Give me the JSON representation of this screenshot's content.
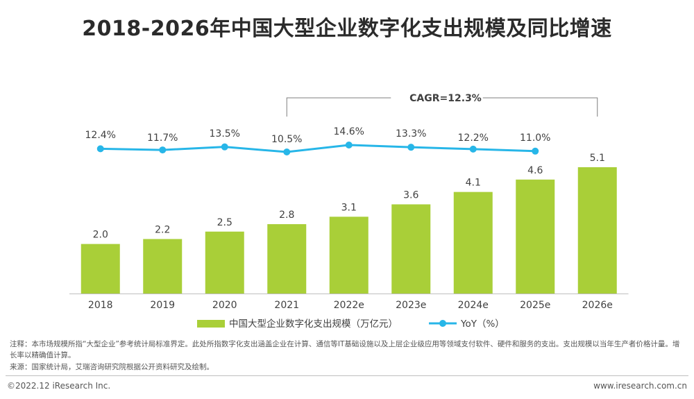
{
  "title": "2018-2026年中国大型企业数字化支出规模及同比增速",
  "chart_data": {
    "type": "bar",
    "categories": [
      "2018",
      "2019",
      "2020",
      "2021",
      "2022e",
      "2023e",
      "2024e",
      "2025e",
      "2026e"
    ],
    "series": [
      {
        "name": "中国大型企业数字化支出规模（万亿元）",
        "type": "bar",
        "color": "#a9cf38",
        "values": [
          2.0,
          2.2,
          2.5,
          2.8,
          3.1,
          3.6,
          4.1,
          4.6,
          5.1
        ],
        "labels": [
          "2.0",
          "2.2",
          "2.5",
          "2.8",
          "3.1",
          "3.6",
          "4.1",
          "4.6",
          "5.1"
        ]
      },
      {
        "name": "YoY（%）",
        "type": "line",
        "color": "#27b6e8",
        "values": [
          12.4,
          11.7,
          13.5,
          10.5,
          14.6,
          13.3,
          12.2,
          11.0,
          null
        ],
        "labels": [
          "12.4%",
          "11.7%",
          "13.5%",
          "10.5%",
          "14.6%",
          "13.3%",
          "12.2%",
          "11.0%",
          ""
        ]
      }
    ],
    "annotation": "CAGR=12.3%",
    "legend_position": "bottom"
  },
  "notes": {
    "line1": "注释：本市场规模所指“大型企业”参考统计局标准界定。此处所指数字化支出涵盖企业在计算、通信等IT基础设施以及上层企业级应用等领域支付软件、硬件和服务的支出。支出规模以当年生产者价格计量。增长率以精确值计算。",
    "line2": "来源：国家统计局，艾瑞咨询研究院根据公开资料研究及绘制。"
  },
  "footer": {
    "copyright": "©2022.12 iResearch Inc.",
    "website": "www.iresearch.com.cn"
  }
}
